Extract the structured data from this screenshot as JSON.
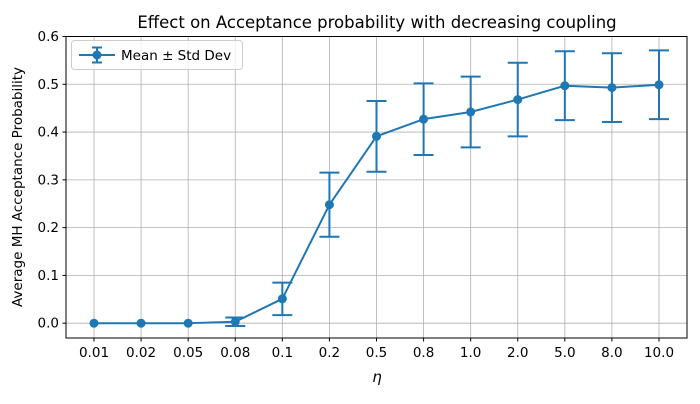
{
  "window": {
    "background": "#ffffff"
  },
  "chart_data": {
    "type": "line",
    "title": "Effect on Acceptance probability with decreasing coupling",
    "xlabel": "η",
    "ylabel": "Average MH Acceptance Probability",
    "legend": [
      "Mean ± Std Dev"
    ],
    "legend_position": "upper left",
    "grid": true,
    "categories": [
      "0.01",
      "0.02",
      "0.05",
      "0.08",
      "0.1",
      "0.2",
      "0.5",
      "0.8",
      "1.0",
      "2.0",
      "5.0",
      "8.0",
      "10.0"
    ],
    "yticks": [
      0.0,
      0.1,
      0.2,
      0.3,
      0.4,
      0.5,
      0.6
    ],
    "ytick_labels": [
      "0.0",
      "0.1",
      "0.2",
      "0.3",
      "0.4",
      "0.5",
      "0.6"
    ],
    "ylim": [
      -0.031,
      0.6
    ],
    "series": [
      {
        "name": "Mean ± Std Dev",
        "mean": [
          0.0,
          0.0,
          0.0,
          0.003,
          0.051,
          0.248,
          0.391,
          0.427,
          0.442,
          0.468,
          0.497,
          0.493,
          0.499
        ],
        "std": [
          0.0,
          0.0,
          0.0,
          0.009,
          0.034,
          0.067,
          0.074,
          0.075,
          0.074,
          0.077,
          0.072,
          0.072,
          0.072
        ]
      }
    ],
    "colors": {
      "series": "#1f77b4",
      "grid": "#b0b0b0",
      "spine": "#000000",
      "legend_border": "#cccccc"
    }
  }
}
